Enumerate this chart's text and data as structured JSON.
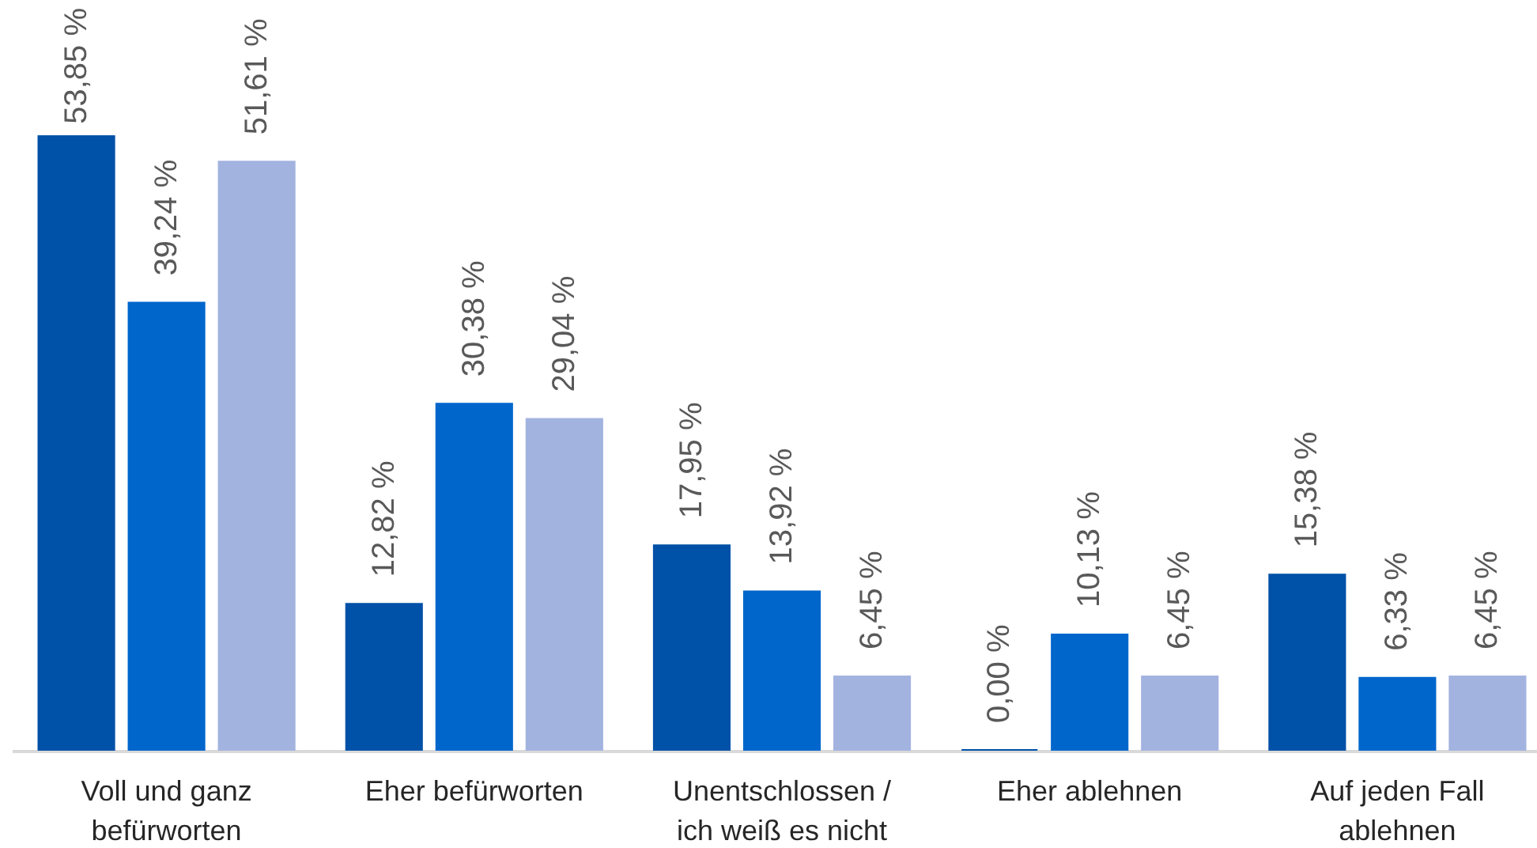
{
  "chart_data": {
    "type": "bar",
    "categories": [
      "Voll und ganz befürworten",
      "Eher befürworten",
      "Unentschlossen / ich weiß es nicht",
      "Eher ablehnen",
      "Auf jeden Fall ablehnen"
    ],
    "series": [
      {
        "color": "#0051a8",
        "values": [
          53.85,
          12.82,
          17.95,
          0.0,
          15.38
        ],
        "value_labels": [
          "53,85 %",
          "12,82 %",
          "17,95 %",
          "0,00 %",
          "15,38 %"
        ]
      },
      {
        "color": "#0066cc",
        "values": [
          39.24,
          30.38,
          13.92,
          10.13,
          6.33
        ],
        "value_labels": [
          "39,24 %",
          "30,38 %",
          "13,92 %",
          "10,13 %",
          "6,33 %"
        ]
      },
      {
        "color": "#a3b3e0",
        "values": [
          51.61,
          29.04,
          6.45,
          6.45,
          6.45
        ],
        "value_labels": [
          "51,61 %",
          "29,04 %",
          "6,45 %",
          "6,45 %",
          "6,45 %"
        ]
      }
    ]
  }
}
